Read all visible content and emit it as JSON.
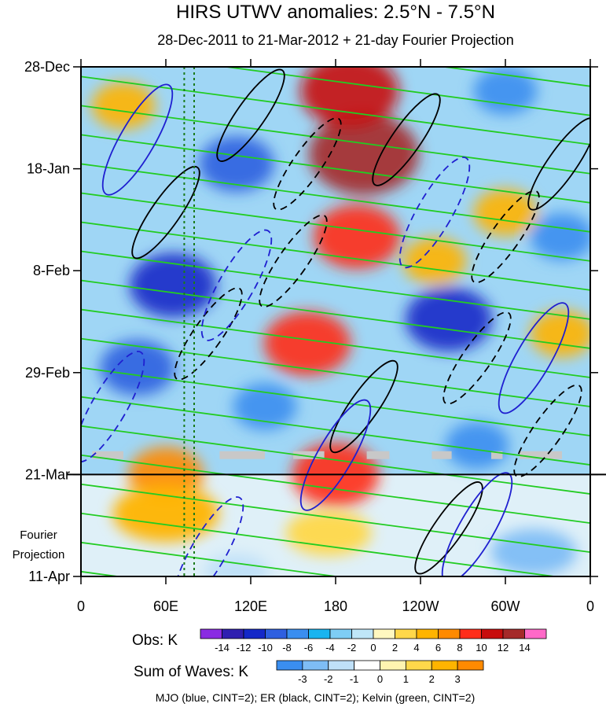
{
  "chart_data": {
    "type": "heatmap",
    "title": "HIRS UTWV anomalies: 2.5°N - 7.5°N",
    "subtitle": "28-Dec-2011 to 21-Mar-2012 + 21-day Fourier Projection",
    "x_axis": {
      "label": "",
      "range": [
        0,
        360
      ],
      "ticks": [
        {
          "lon": 0,
          "label": "0"
        },
        {
          "lon": 60,
          "label": "60E"
        },
        {
          "lon": 120,
          "label": "120E"
        },
        {
          "lon": 180,
          "label": "180"
        },
        {
          "lon": 240,
          "label": "120W"
        },
        {
          "lon": 300,
          "label": "60W"
        },
        {
          "lon": 360,
          "label": "0"
        }
      ]
    },
    "y_axis": {
      "label": "",
      "range_days": [
        0,
        105
      ],
      "ticks": [
        {
          "day": 0,
          "label": "28-Dec"
        },
        {
          "day": 21,
          "label": "18-Jan"
        },
        {
          "day": 42,
          "label": "8-Feb"
        },
        {
          "day": 63,
          "label": "29-Feb"
        },
        {
          "day": 84,
          "label": "21-Mar"
        },
        {
          "day": 105,
          "label": "11-Apr"
        }
      ]
    },
    "observation_end_day": 84,
    "projection_label": "Fourier Projection",
    "reference_lons": [
      73,
      80
    ],
    "obs_colorbar": {
      "label": "Obs: K",
      "levels": [
        "-14",
        "-12",
        "-10",
        "-8",
        "-6",
        "-4",
        "-2",
        "0",
        "2",
        "4",
        "6",
        "8",
        "10",
        "12",
        "14"
      ],
      "colors": [
        "#8a2be2",
        "#2f1fb0",
        "#1428c8",
        "#2e5fe0",
        "#3a8ef0",
        "#19b4f0",
        "#7ecdf5",
        "#bfe6f8",
        "#fff8c0",
        "#ffd84a",
        "#ffb400",
        "#ff8a00",
        "#ff2d1a",
        "#c80d0d",
        "#a52a2a",
        "#ff69c8"
      ]
    },
    "waves_colorbar": {
      "label": "Sum of Waves: K",
      "levels": [
        "-3",
        "-2",
        "-1",
        "0",
        "1",
        "2",
        "3"
      ],
      "colors": [
        "#3a8ef0",
        "#7ebdf5",
        "#bfe0f8",
        "#ffffff",
        "#fff4b0",
        "#ffd84a",
        "#ffb400",
        "#ff8a00"
      ]
    },
    "legend_note": "MJO (blue, CINT=2); ER (black, CINT=2); Kelvin (green, CINT=2)",
    "series": [
      {
        "name": "MJO",
        "color": "#1f1fd0",
        "contour_interval": 2
      },
      {
        "name": "ER",
        "color": "#000000",
        "contour_interval": 2
      },
      {
        "name": "Kelvin",
        "color": "#22cc22",
        "contour_interval": 2
      }
    ],
    "missing_data_band": {
      "day": 80,
      "lon_segments": [
        [
          8,
          30
        ],
        [
          98,
          130
        ],
        [
          150,
          172
        ],
        [
          202,
          218
        ],
        [
          248,
          262
        ],
        [
          290,
          298
        ],
        [
          310,
          340
        ]
      ]
    },
    "anomaly_features": [
      {
        "lon": 200,
        "day": 18,
        "value": 14
      },
      {
        "lon": 190,
        "day": 5,
        "value": 12
      },
      {
        "lon": 195,
        "day": 35,
        "value": 10
      },
      {
        "lon": 160,
        "day": 57,
        "value": 10
      },
      {
        "lon": 180,
        "day": 84,
        "value": 10
      },
      {
        "lon": 60,
        "day": 84,
        "value": 8
      },
      {
        "lon": 30,
        "day": 8,
        "value": 6
      },
      {
        "lon": 250,
        "day": 40,
        "value": 6
      },
      {
        "lon": 300,
        "day": 30,
        "value": 6
      },
      {
        "lon": 340,
        "day": 55,
        "value": 6
      },
      {
        "lon": 110,
        "day": 20,
        "value": -8
      },
      {
        "lon": 65,
        "day": 45,
        "value": -10
      },
      {
        "lon": 260,
        "day": 52,
        "value": -10
      },
      {
        "lon": 40,
        "day": 62,
        "value": -8
      },
      {
        "lon": 300,
        "day": 5,
        "value": -6
      },
      {
        "lon": 130,
        "day": 70,
        "value": -6
      },
      {
        "lon": 340,
        "day": 35,
        "value": -6
      },
      {
        "lon": 280,
        "day": 78,
        "value": -6
      }
    ],
    "projection_features": [
      {
        "lon": 60,
        "day": 92,
        "value": 3
      },
      {
        "lon": 175,
        "day": 96,
        "value": 2
      },
      {
        "lon": 320,
        "day": 100,
        "value": -2
      },
      {
        "lon": 110,
        "day": 104,
        "value": -1
      }
    ]
  }
}
